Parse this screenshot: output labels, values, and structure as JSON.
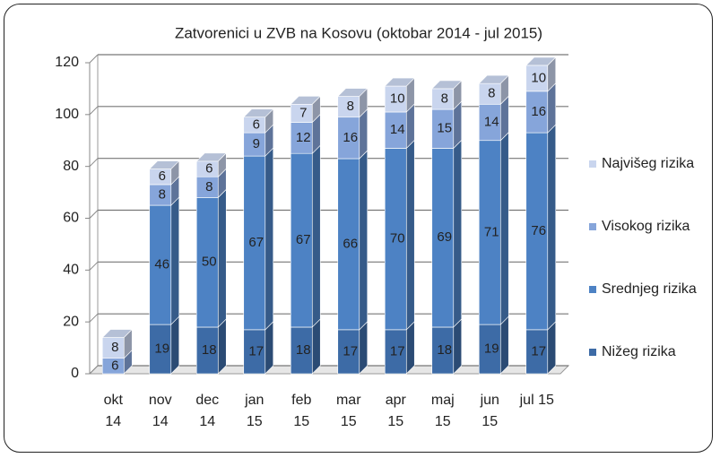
{
  "chart_data": {
    "type": "stacked_bar_3d",
    "title": "Zatvorenici u ZVB na Kosovu (oktobar 2014 - jul 2015)",
    "categories": [
      "okt 14",
      "nov 14",
      "dec 14",
      "jan 15",
      "feb 15",
      "mar 15",
      "apr 15",
      "maj 15",
      "jun 15",
      "jul 15"
    ],
    "series": [
      {
        "name": "Nižeg rizika",
        "color": "#3d6ba6",
        "values": [
          null,
          19,
          18,
          17,
          18,
          17,
          17,
          18,
          19,
          17
        ]
      },
      {
        "name": "Srednjeg rizika",
        "color": "#4d82c4",
        "values": [
          null,
          46,
          50,
          67,
          67,
          66,
          70,
          69,
          71,
          76
        ]
      },
      {
        "name": "Visokog rizika",
        "color": "#86a5da",
        "values": [
          6,
          8,
          8,
          9,
          12,
          16,
          14,
          15,
          14,
          16
        ]
      },
      {
        "name": "Najvišeg rizika",
        "color": "#c9d5ee",
        "values": [
          8,
          6,
          6,
          6,
          7,
          8,
          10,
          8,
          8,
          10
        ]
      }
    ],
    "ylim": [
      0,
      120
    ],
    "yticks": [
      0,
      20,
      40,
      60,
      80,
      100,
      120
    ],
    "grid": true
  }
}
